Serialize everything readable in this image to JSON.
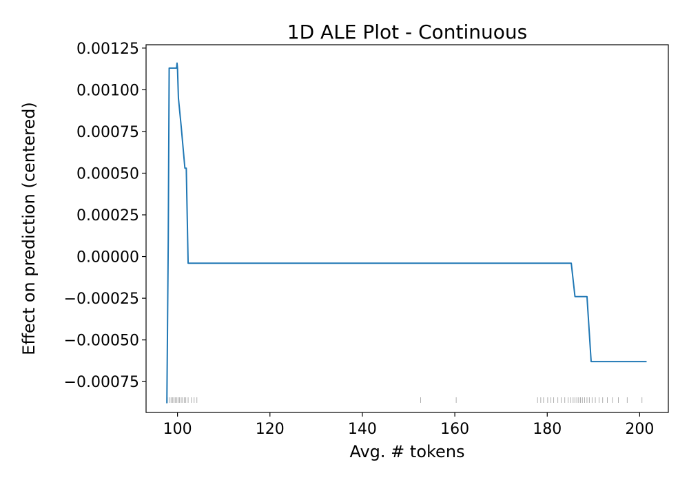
{
  "chart_data": {
    "type": "line",
    "title": "1D ALE Plot - Continuous",
    "xlabel": "Avg. # tokens",
    "ylabel": "Effect on prediction (centered)",
    "xlim": [
      93.2,
      206.2
    ],
    "ylim": [
      -0.000935,
      0.00127
    ],
    "xticks": [
      {
        "value": 100,
        "label": "100"
      },
      {
        "value": 120,
        "label": "120"
      },
      {
        "value": 140,
        "label": "140"
      },
      {
        "value": 160,
        "label": "160"
      },
      {
        "value": 180,
        "label": "180"
      },
      {
        "value": 200,
        "label": "200"
      }
    ],
    "yticks": [
      {
        "value": 0.00125,
        "label": "0.00125"
      },
      {
        "value": 0.001,
        "label": "0.00100"
      },
      {
        "value": 0.00075,
        "label": "0.00075"
      },
      {
        "value": 0.0005,
        "label": "0.00050"
      },
      {
        "value": 0.00025,
        "label": "0.00025"
      },
      {
        "value": 0.0,
        "label": "0.00000"
      },
      {
        "value": -0.00025,
        "label": "−0.00025"
      },
      {
        "value": -0.0005,
        "label": "−0.00050"
      },
      {
        "value": -0.00075,
        "label": "−0.00075"
      }
    ],
    "series": [
      {
        "color": "#1f77b4",
        "x": [
          97.7,
          98.0,
          98.2,
          99.8,
          99.9,
          100.0,
          100.2,
          100.8,
          101.6,
          101.9,
          102.3,
          185.2,
          186.0,
          188.6,
          189.5,
          201.5
        ],
        "y": [
          -0.00088,
          0.0001,
          0.00113,
          0.00113,
          0.00116,
          0.00113,
          0.00095,
          0.00078,
          0.00053,
          0.00053,
          -4e-05,
          -4e-05,
          -0.00024,
          -0.00024,
          -0.00063,
          -0.00063
        ]
      }
    ],
    "rug": {
      "color": "#999999",
      "x": [
        97.8,
        98.2,
        98.6,
        98.9,
        99.2,
        99.5,
        99.8,
        100.1,
        100.4,
        100.8,
        101.1,
        101.5,
        101.8,
        102.3,
        103.0,
        103.6,
        104.2,
        152.6,
        160.3,
        177.9,
        178.6,
        179.2,
        180.1,
        180.8,
        181.4,
        182.3,
        183.0,
        183.8,
        184.5,
        185.1,
        185.6,
        186.0,
        186.4,
        186.8,
        187.2,
        187.6,
        188.1,
        188.6,
        189.1,
        189.7,
        190.4,
        191.2,
        192.0,
        193.0,
        194.1,
        195.4,
        197.3,
        200.5
      ]
    }
  }
}
